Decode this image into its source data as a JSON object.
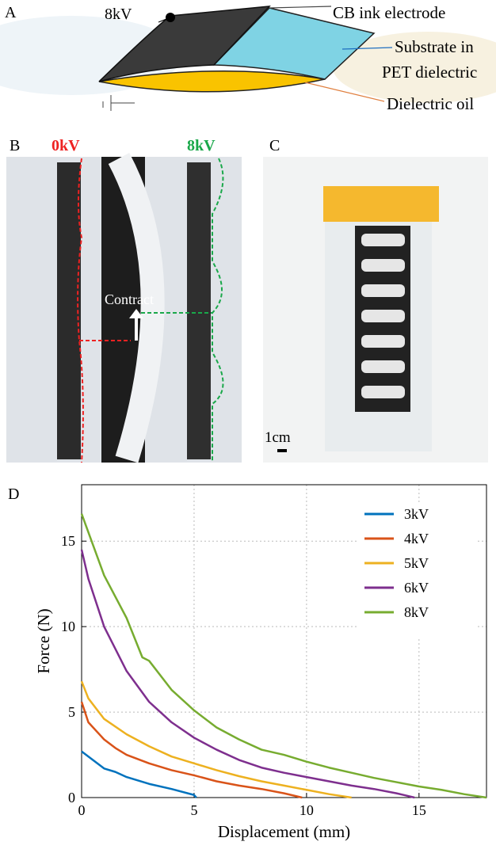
{
  "panel_a": {
    "label": "A",
    "voltage": "8kV",
    "electrode": "CB ink electrode",
    "substrate": [
      "Substrate in",
      "PET dielectric"
    ],
    "oil": "Dielectric oil"
  },
  "panel_b": {
    "label": "B",
    "off": "0kV",
    "on": "8kV",
    "arrow": "Contract"
  },
  "panel_c": {
    "label": "C",
    "scale": "1cm"
  },
  "panel_d": {
    "label": "D"
  },
  "chart_data": {
    "type": "line",
    "xlabel": "Displacement (mm)",
    "ylabel": "Force (N)",
    "xlim": [
      0,
      18
    ],
    "ylim": [
      0,
      18.3
    ],
    "xticks": [
      0,
      5,
      10,
      15
    ],
    "yticks": [
      0,
      5,
      10,
      15
    ],
    "grid": true,
    "legend": "upper right",
    "series": [
      {
        "name": "3kV",
        "color": "#0072bd",
        "x": [
          0,
          0.5,
          1,
          1.5,
          2,
          3,
          4,
          5,
          5.1
        ],
        "values": [
          2.7,
          2.2,
          1.7,
          1.5,
          1.2,
          0.8,
          0.5,
          0.15,
          0
        ]
      },
      {
        "name": "4kV",
        "color": "#d95319",
        "x": [
          0,
          0.3,
          1,
          1.5,
          2,
          3,
          4,
          5,
          6,
          7,
          8,
          9,
          9.8
        ],
        "values": [
          5.6,
          4.4,
          3.4,
          2.9,
          2.5,
          2,
          1.6,
          1.3,
          0.95,
          0.7,
          0.5,
          0.25,
          0
        ]
      },
      {
        "name": "5kV",
        "color": "#edb120",
        "x": [
          0,
          0.3,
          1,
          2,
          3,
          4,
          5,
          6,
          7,
          8,
          9,
          10,
          11,
          12
        ],
        "values": [
          6.8,
          5.8,
          4.6,
          3.7,
          3,
          2.4,
          2,
          1.6,
          1.25,
          0.95,
          0.7,
          0.45,
          0.2,
          0
        ]
      },
      {
        "name": "6kV",
        "color": "#7e2f8e",
        "x": [
          0,
          0.3,
          1,
          2,
          3,
          4,
          5,
          6,
          7,
          8,
          9,
          10,
          11,
          12,
          13,
          14,
          14.8
        ],
        "values": [
          14.5,
          12.8,
          10,
          7.4,
          5.6,
          4.4,
          3.5,
          2.8,
          2.2,
          1.75,
          1.45,
          1.2,
          0.95,
          0.7,
          0.5,
          0.25,
          0
        ]
      },
      {
        "name": "8kV",
        "color": "#77ac30",
        "x": [
          0,
          0.5,
          1,
          2,
          2.7,
          3,
          4,
          5,
          6,
          7,
          8,
          9,
          10,
          11,
          12,
          13,
          14,
          15,
          16,
          17,
          18
        ],
        "values": [
          16.6,
          14.8,
          13,
          10.5,
          8.2,
          8,
          6.3,
          5.1,
          4.1,
          3.4,
          2.8,
          2.5,
          2.1,
          1.75,
          1.45,
          1.15,
          0.9,
          0.65,
          0.45,
          0.2,
          0
        ]
      }
    ]
  }
}
